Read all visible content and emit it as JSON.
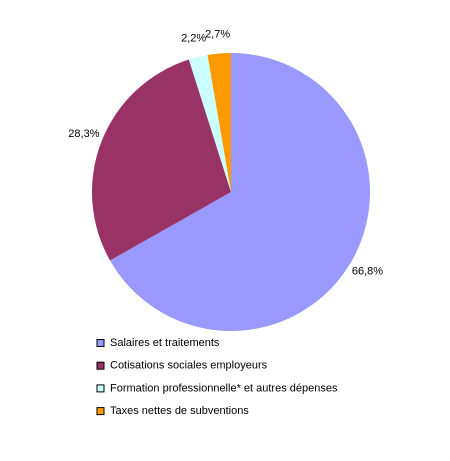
{
  "chart_data": {
    "type": "pie",
    "categories": [
      "Salaires et traitements",
      "Cotisations sociales employeurs",
      "Formation professionnelle* et autres dépenses",
      "Taxes nettes de subventions"
    ],
    "values": [
      66.8,
      28.3,
      2.2,
      2.7
    ],
    "value_labels": [
      "66,8%",
      "28,3%",
      "2,2%",
      "2,7%"
    ],
    "colors": [
      "#9999ff",
      "#993366",
      "#ccffff",
      "#ff9900"
    ]
  }
}
